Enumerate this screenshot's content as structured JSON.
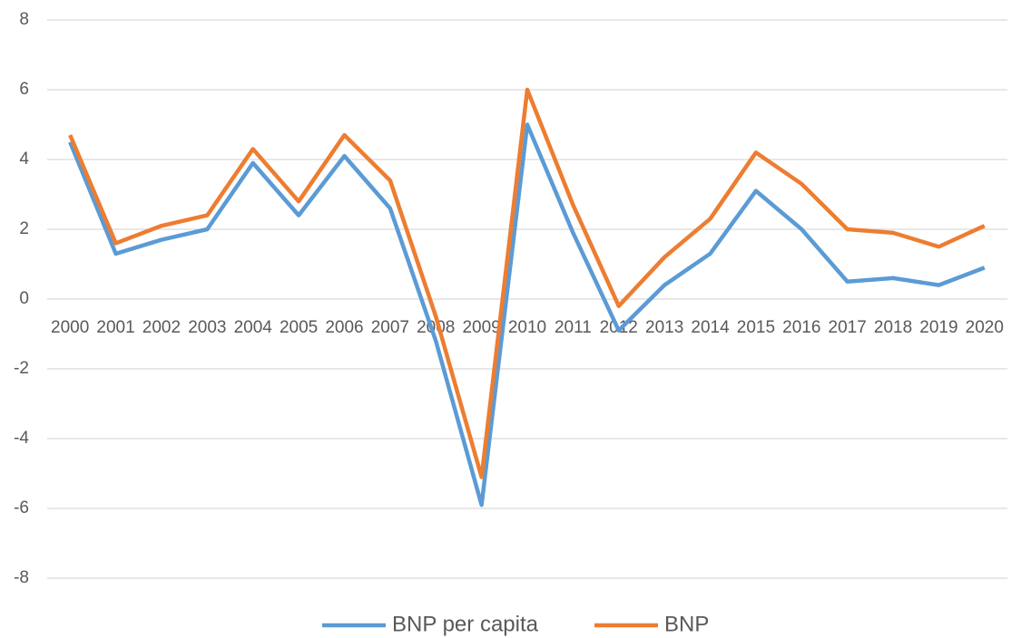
{
  "chart_data": {
    "type": "line",
    "categories": [
      "2000",
      "2001",
      "2002",
      "2003",
      "2004",
      "2005",
      "2006",
      "2007",
      "2008",
      "2009",
      "2010",
      "2011",
      "2012",
      "2013",
      "2014",
      "2015",
      "2016",
      "2017",
      "2018",
      "2019",
      "2020"
    ],
    "series": [
      {
        "name": "BNP per capita",
        "color": "#5b9bd5",
        "values": [
          4.5,
          1.3,
          1.7,
          2.0,
          3.9,
          2.4,
          4.1,
          2.6,
          -1.2,
          -5.9,
          5.0,
          1.9,
          -0.9,
          0.4,
          1.3,
          3.1,
          2.0,
          0.5,
          0.6,
          0.4,
          0.9
        ]
      },
      {
        "name": "BNP",
        "color": "#ed7d31",
        "values": [
          4.7,
          1.6,
          2.1,
          2.4,
          4.3,
          2.8,
          4.7,
          3.4,
          -0.5,
          -5.1,
          6.0,
          2.7,
          -0.2,
          1.2,
          2.3,
          4.2,
          3.3,
          2.0,
          1.9,
          1.5,
          2.1
        ]
      }
    ],
    "ylim": [
      -8,
      8
    ],
    "yticks": [
      -8,
      -6,
      -4,
      -2,
      0,
      2,
      4,
      6,
      8
    ],
    "grid": true,
    "legend": "bottom"
  }
}
